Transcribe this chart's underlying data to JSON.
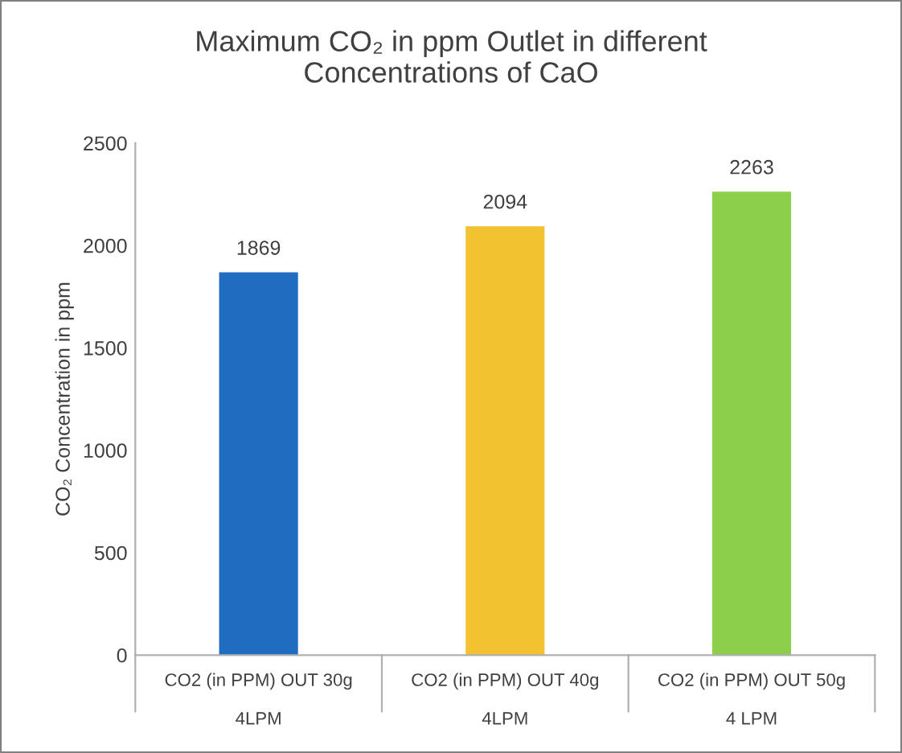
{
  "chart_data": {
    "type": "bar",
    "title": "Maximum CO₂ in ppm Outlet in different\nConcentrations of CaO",
    "ylabel": "CO₂ Concentration in ppm",
    "categories": [
      "CO2 (in PPM) OUT 30g\n\n4LPM",
      "CO2 (in PPM) OUT 40g\n\n4LPM",
      "CO2 (in PPM) OUT 50g\n\n4 LPM"
    ],
    "values": [
      1869,
      2094,
      2263
    ],
    "colors": [
      "#1f6cc0",
      "#f2c230",
      "#8ccf4a"
    ],
    "ylim": [
      0,
      2500
    ],
    "yticks": [
      0,
      500,
      1000,
      1500,
      2000,
      2500
    ],
    "grid": false,
    "data_labels": true
  }
}
